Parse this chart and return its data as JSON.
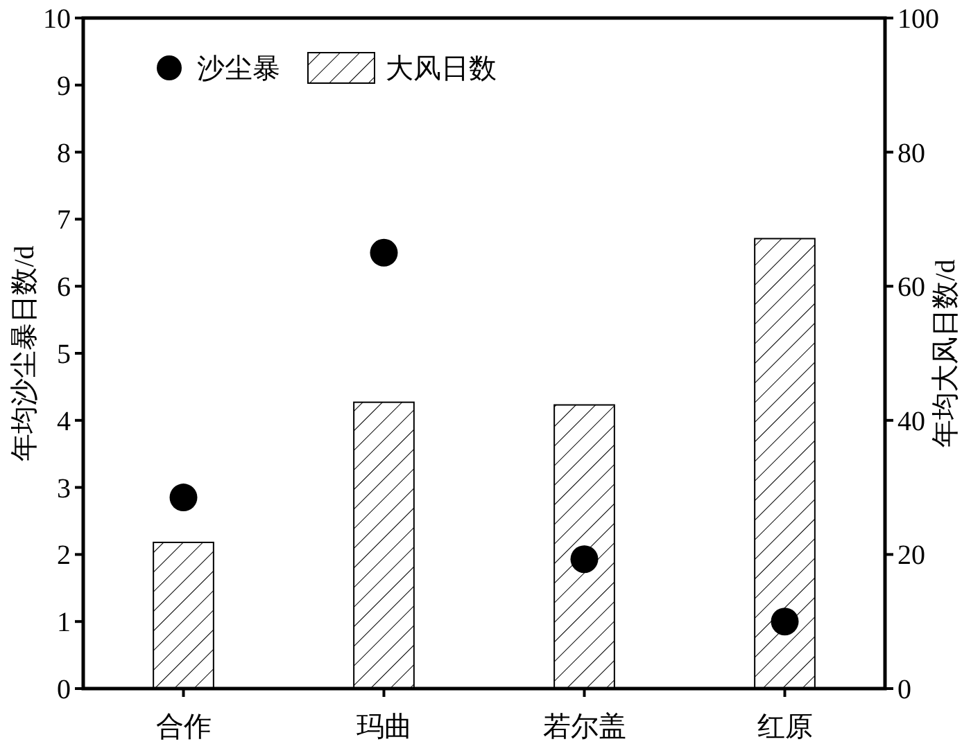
{
  "chart_data": {
    "type": "bar",
    "ylabel": "年均沙尘暴日数/d",
    "y2label": "年均大风日数/d",
    "categories": [
      "合作",
      "玛曲",
      "若尔盖",
      "红原"
    ],
    "series": [
      {
        "name": "沙尘暴",
        "type": "scatter",
        "color": "#000000",
        "values": [
          2.85,
          6.5,
          1.93,
          1.0
        ]
      },
      {
        "name": "大风日数",
        "type": "bar",
        "axis": "y2",
        "color": "#000000",
        "values": [
          21.8,
          42.7,
          42.3,
          67.1
        ]
      }
    ],
    "ylim": [
      0,
      10
    ],
    "yticks": [
      0,
      1,
      2,
      3,
      4,
      5,
      6,
      7,
      8,
      9,
      10
    ],
    "y2lim": [
      0,
      100
    ],
    "y2ticks": [
      0,
      20,
      40,
      60,
      80,
      100
    ],
    "legend": "top left",
    "grid": false,
    "marker": "circle"
  }
}
